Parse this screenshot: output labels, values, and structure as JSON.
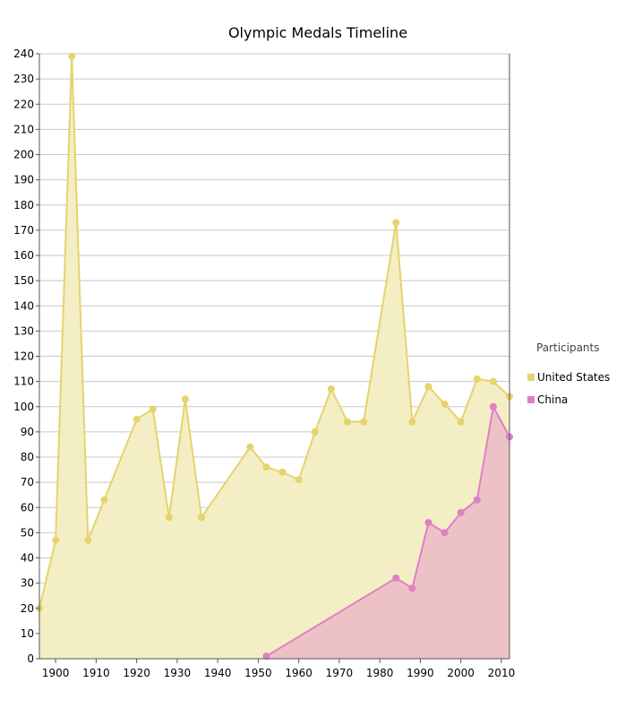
{
  "chart_data": {
    "type": "area",
    "title": "Olympic Medals Timeline",
    "xlabel": "",
    "ylabel": "",
    "xlim": [
      1896,
      2012
    ],
    "ylim": [
      0,
      240
    ],
    "x_ticks": [
      1900,
      1910,
      1920,
      1930,
      1940,
      1950,
      1960,
      1970,
      1980,
      1990,
      2000,
      2010
    ],
    "y_ticks": [
      0,
      10,
      20,
      30,
      40,
      50,
      60,
      70,
      80,
      90,
      100,
      110,
      120,
      130,
      140,
      150,
      160,
      170,
      180,
      190,
      200,
      210,
      220,
      230,
      240
    ],
    "grid": "horizontal",
    "legend": {
      "title": "Participants",
      "position": "right"
    },
    "series": [
      {
        "name": "United States",
        "color": "#e6d36b",
        "fill": "#f3edc2",
        "x": [
          1896,
          1900,
          1904,
          1908,
          1912,
          1920,
          1924,
          1928,
          1932,
          1936,
          1948,
          1952,
          1956,
          1960,
          1964,
          1968,
          1972,
          1976,
          1984,
          1988,
          1992,
          1996,
          2000,
          2004,
          2008,
          2012
        ],
        "y": [
          20,
          47,
          239,
          47,
          63,
          95,
          99,
          56,
          103,
          56,
          84,
          76,
          74,
          71,
          90,
          107,
          94,
          94,
          173,
          94,
          108,
          101,
          94,
          111,
          110,
          104
        ]
      },
      {
        "name": "China",
        "color": "#e07fc6",
        "fill": "#ebbfc6",
        "x": [
          1952,
          1984,
          1988,
          1992,
          1996,
          2000,
          2004,
          2008,
          2012
        ],
        "y": [
          1,
          32,
          28,
          54,
          50,
          58,
          63,
          100,
          88
        ]
      }
    ]
  }
}
